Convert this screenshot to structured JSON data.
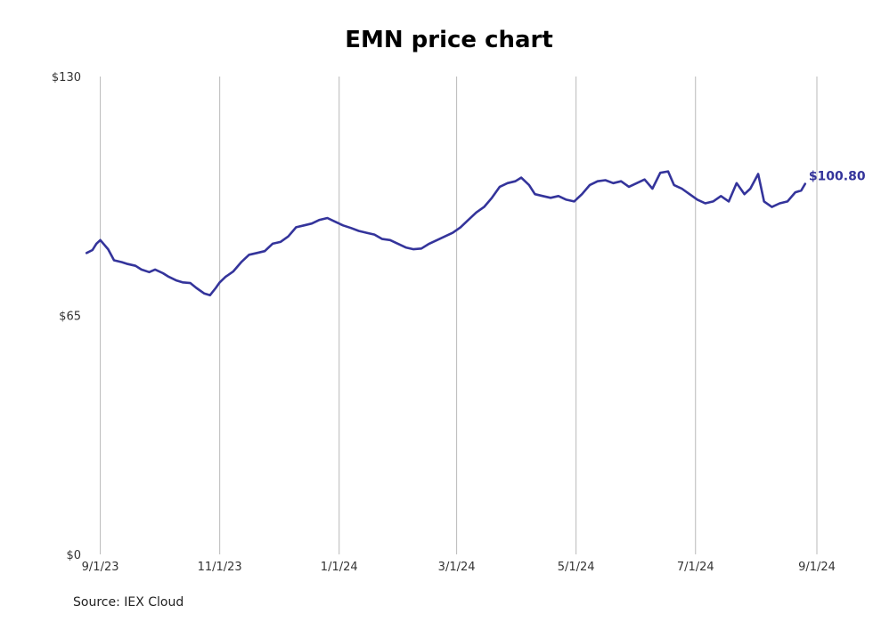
{
  "chart_data": {
    "type": "line",
    "title": "EMN price chart",
    "source": "Source: IEX Cloud",
    "xlabel": "",
    "ylabel": "",
    "ylim": [
      0,
      130
    ],
    "xlim": [
      "2023-08-24",
      "2024-09-06"
    ],
    "y_ticks": [
      {
        "value": 0,
        "label": "$0"
      },
      {
        "value": 65,
        "label": "$65"
      },
      {
        "value": 130,
        "label": "$130"
      }
    ],
    "x_ticks": [
      {
        "date": "2023-09-01",
        "label": "9/1/23"
      },
      {
        "date": "2023-11-01",
        "label": "11/1/23"
      },
      {
        "date": "2024-01-01",
        "label": "1/1/24"
      },
      {
        "date": "2024-03-01",
        "label": "3/1/24"
      },
      {
        "date": "2024-05-01",
        "label": "5/1/24"
      },
      {
        "date": "2024-07-01",
        "label": "7/1/24"
      },
      {
        "date": "2024-09-01",
        "label": "9/1/24"
      }
    ],
    "grid": {
      "vertical": true,
      "horizontal": false
    },
    "series": [
      {
        "color": "#34349b",
        "end_label": "$100.80",
        "points": [
          [
            "2023-08-25",
            82.0
          ],
          [
            "2023-08-28",
            82.8
          ],
          [
            "2023-08-30",
            84.5
          ],
          [
            "2023-09-01",
            85.5
          ],
          [
            "2023-09-05",
            83.0
          ],
          [
            "2023-09-08",
            80.0
          ],
          [
            "2023-09-12",
            79.5
          ],
          [
            "2023-09-15",
            79.0
          ],
          [
            "2023-09-19",
            78.5
          ],
          [
            "2023-09-22",
            77.5
          ],
          [
            "2023-09-26",
            76.8
          ],
          [
            "2023-09-29",
            77.5
          ],
          [
            "2023-10-03",
            76.5
          ],
          [
            "2023-10-06",
            75.5
          ],
          [
            "2023-10-10",
            74.5
          ],
          [
            "2023-10-13",
            74.0
          ],
          [
            "2023-10-17",
            73.8
          ],
          [
            "2023-10-20",
            72.5
          ],
          [
            "2023-10-24",
            71.0
          ],
          [
            "2023-10-27",
            70.5
          ],
          [
            "2023-10-30",
            72.5
          ],
          [
            "2023-11-01",
            74.0
          ],
          [
            "2023-11-04",
            75.5
          ],
          [
            "2023-11-08",
            77.0
          ],
          [
            "2023-11-12",
            79.5
          ],
          [
            "2023-11-16",
            81.5
          ],
          [
            "2023-11-20",
            82.0
          ],
          [
            "2023-11-24",
            82.5
          ],
          [
            "2023-11-28",
            84.5
          ],
          [
            "2023-12-02",
            85.0
          ],
          [
            "2023-12-06",
            86.5
          ],
          [
            "2023-12-10",
            89.0
          ],
          [
            "2023-12-14",
            89.5
          ],
          [
            "2023-12-18",
            90.0
          ],
          [
            "2023-12-22",
            91.0
          ],
          [
            "2023-12-26",
            91.5
          ],
          [
            "2023-12-30",
            90.5
          ],
          [
            "2024-01-03",
            89.5
          ],
          [
            "2024-01-07",
            88.8
          ],
          [
            "2024-01-11",
            88.0
          ],
          [
            "2024-01-15",
            87.5
          ],
          [
            "2024-01-19",
            87.0
          ],
          [
            "2024-01-23",
            85.8
          ],
          [
            "2024-01-27",
            85.5
          ],
          [
            "2024-01-31",
            84.5
          ],
          [
            "2024-02-04",
            83.5
          ],
          [
            "2024-02-08",
            83.0
          ],
          [
            "2024-02-12",
            83.2
          ],
          [
            "2024-02-16",
            84.5
          ],
          [
            "2024-02-20",
            85.5
          ],
          [
            "2024-02-24",
            86.5
          ],
          [
            "2024-02-28",
            87.5
          ],
          [
            "2024-03-03",
            89.0
          ],
          [
            "2024-03-07",
            91.0
          ],
          [
            "2024-03-11",
            93.0
          ],
          [
            "2024-03-15",
            94.5
          ],
          [
            "2024-03-19",
            97.0
          ],
          [
            "2024-03-23",
            100.0
          ],
          [
            "2024-03-27",
            101.0
          ],
          [
            "2024-03-31",
            101.5
          ],
          [
            "2024-04-03",
            102.5
          ],
          [
            "2024-04-07",
            100.5
          ],
          [
            "2024-04-10",
            98.0
          ],
          [
            "2024-04-14",
            97.5
          ],
          [
            "2024-04-18",
            97.0
          ],
          [
            "2024-04-22",
            97.5
          ],
          [
            "2024-04-26",
            96.5
          ],
          [
            "2024-04-30",
            96.0
          ],
          [
            "2024-05-04",
            98.0
          ],
          [
            "2024-05-08",
            100.5
          ],
          [
            "2024-05-12",
            101.5
          ],
          [
            "2024-05-16",
            101.8
          ],
          [
            "2024-05-20",
            101.0
          ],
          [
            "2024-05-24",
            101.5
          ],
          [
            "2024-05-28",
            100.0
          ],
          [
            "2024-06-01",
            101.0
          ],
          [
            "2024-06-05",
            102.0
          ],
          [
            "2024-06-09",
            99.5
          ],
          [
            "2024-06-13",
            103.8
          ],
          [
            "2024-06-17",
            104.2
          ],
          [
            "2024-06-20",
            100.5
          ],
          [
            "2024-06-24",
            99.5
          ],
          [
            "2024-06-28",
            98.0
          ],
          [
            "2024-07-02",
            96.5
          ],
          [
            "2024-07-06",
            95.5
          ],
          [
            "2024-07-10",
            96.0
          ],
          [
            "2024-07-14",
            97.5
          ],
          [
            "2024-07-18",
            96.0
          ],
          [
            "2024-07-22",
            101.0
          ],
          [
            "2024-07-26",
            98.0
          ],
          [
            "2024-07-29",
            99.5
          ],
          [
            "2024-08-02",
            103.5
          ],
          [
            "2024-08-05",
            96.0
          ],
          [
            "2024-08-09",
            94.5
          ],
          [
            "2024-08-13",
            95.5
          ],
          [
            "2024-08-17",
            96.0
          ],
          [
            "2024-08-21",
            98.5
          ],
          [
            "2024-08-24",
            99.0
          ],
          [
            "2024-08-26",
            100.8
          ]
        ]
      }
    ]
  }
}
